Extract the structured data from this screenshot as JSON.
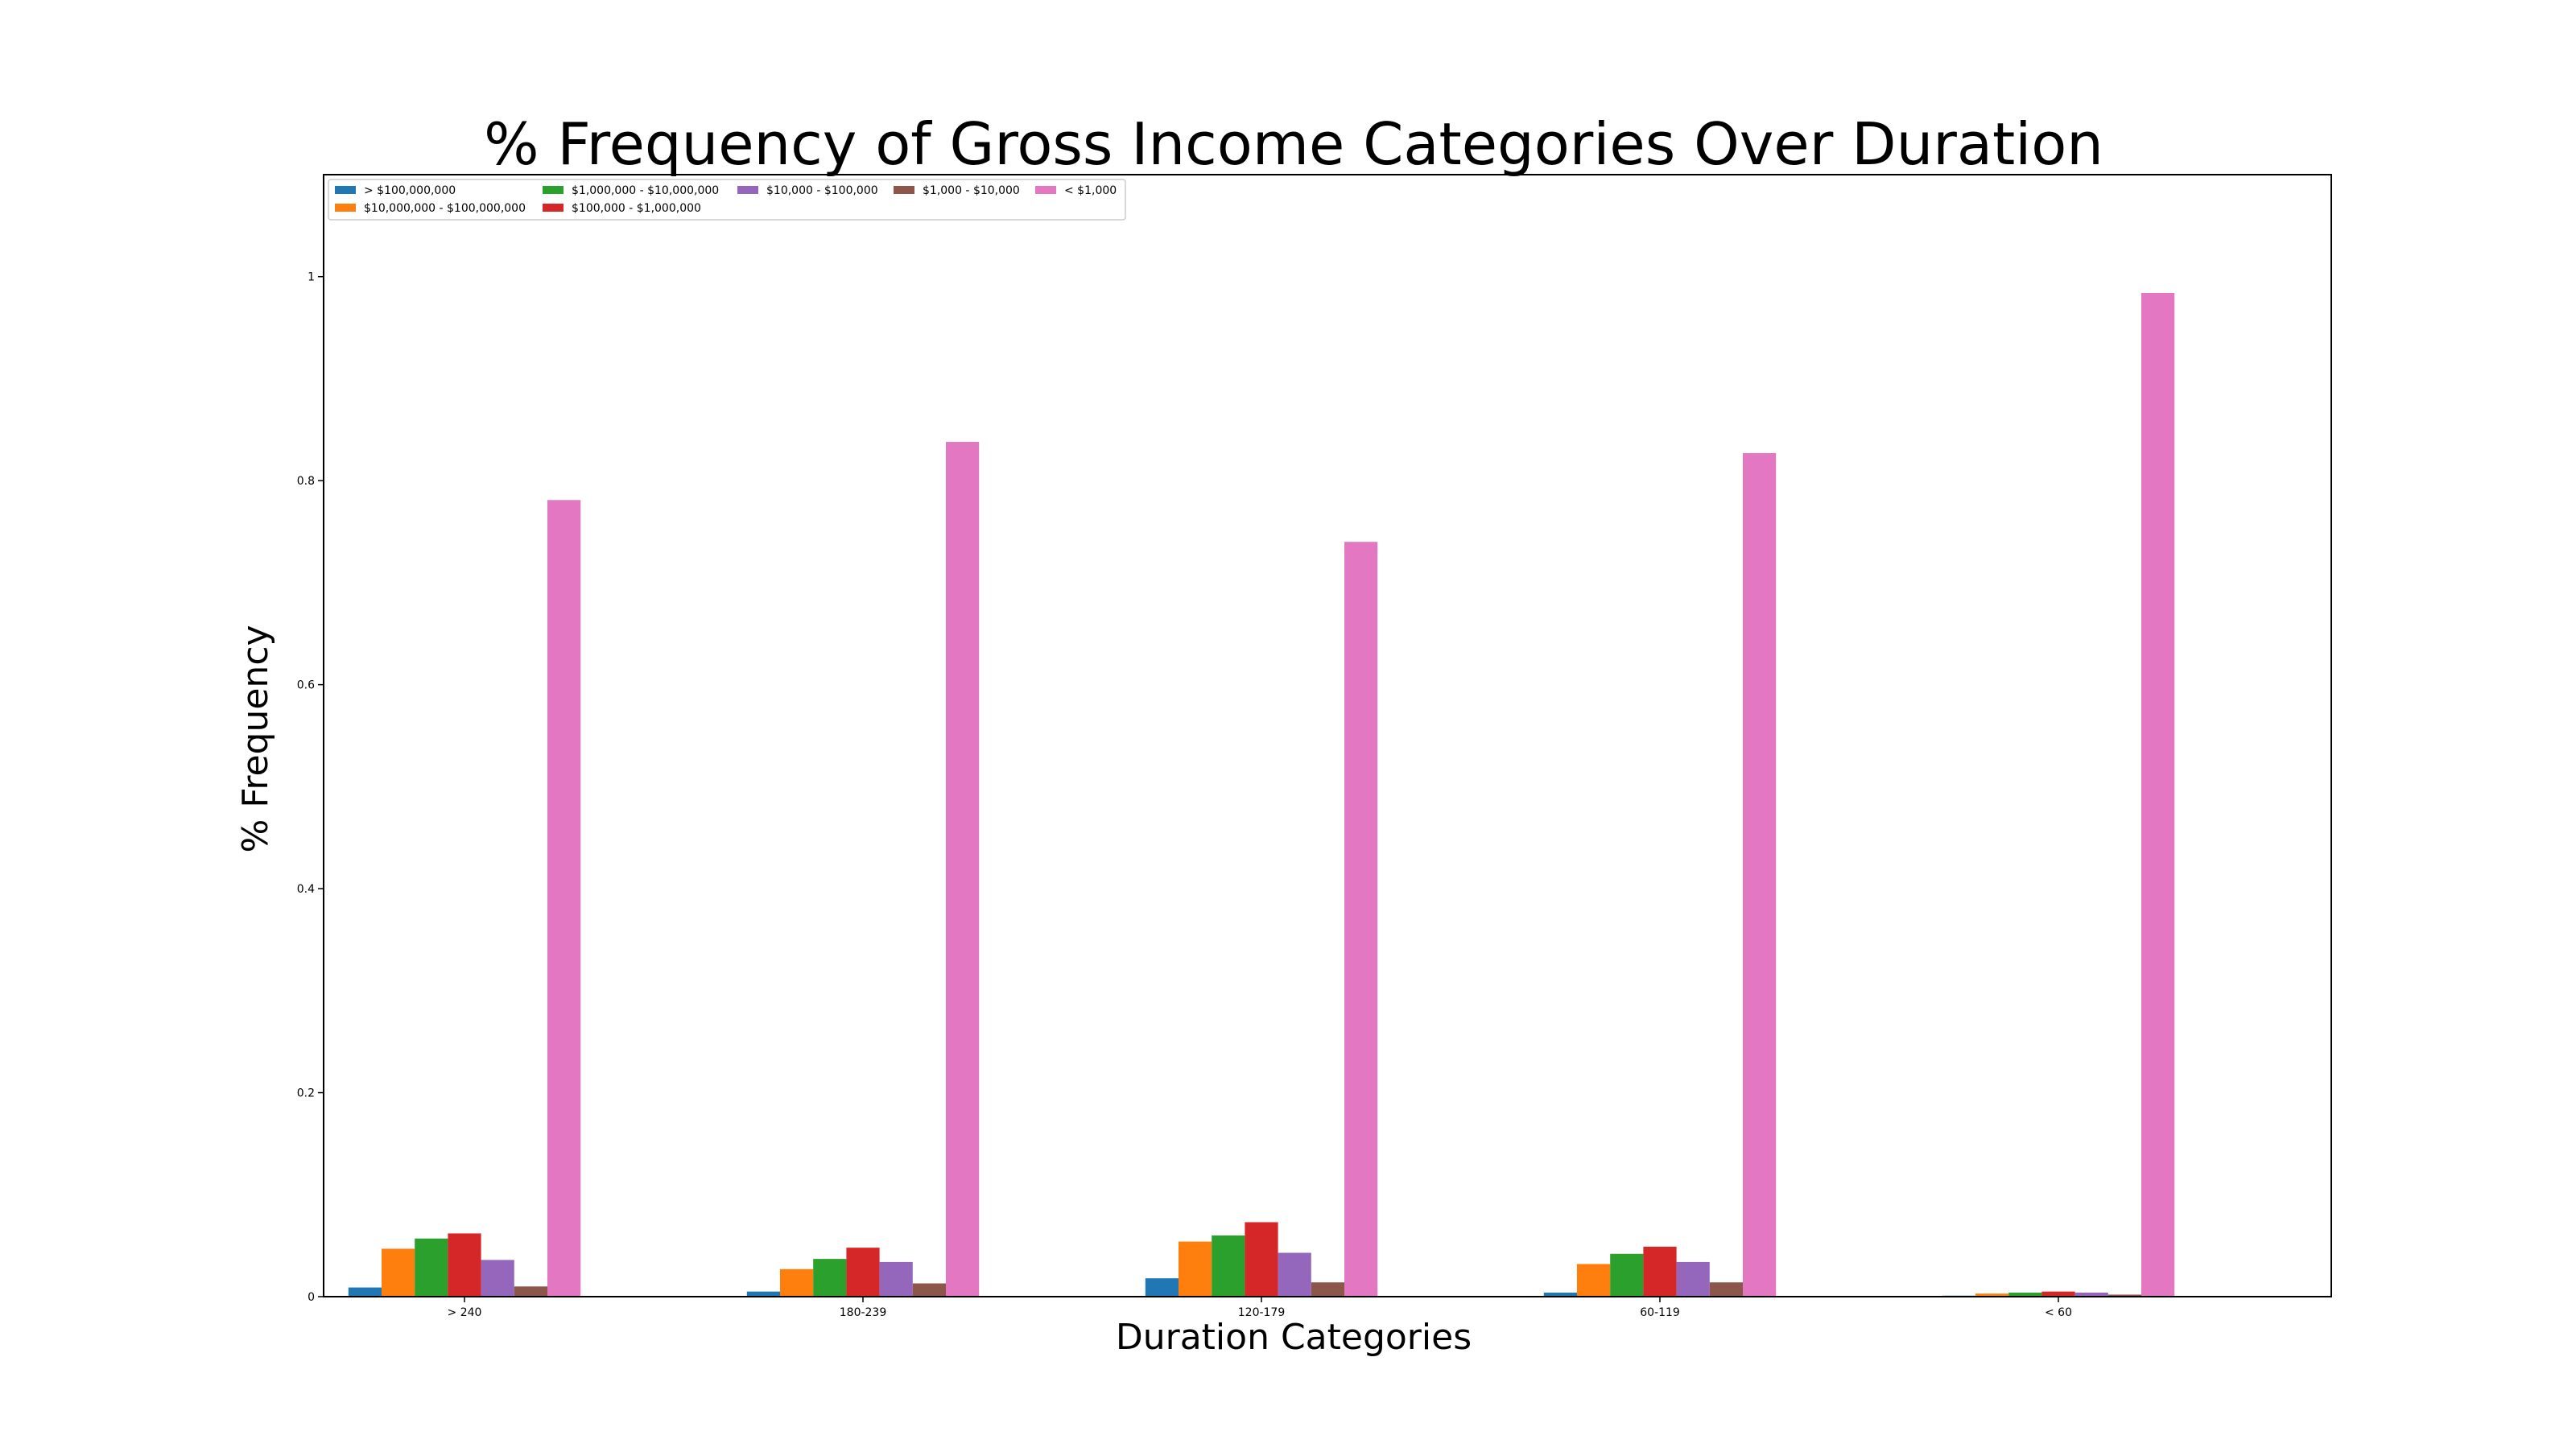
{
  "chart_data": {
    "type": "bar",
    "title": "% Frequency of Gross Income Categories Over Duration",
    "xlabel": "Duration Categories",
    "ylabel": "% Frequency",
    "categories": [
      "> 240",
      "180-239",
      "120-179",
      "60-119",
      "< 60"
    ],
    "ylim": [
      0,
      1.1
    ],
    "yticks": [
      0,
      0.2,
      0.4,
      0.6,
      0.8,
      1
    ],
    "ytick_labels": [
      "0",
      "0.2",
      "0.4",
      "0.6",
      "0.8",
      "1"
    ],
    "grid": false,
    "legend_position": "top-left",
    "series": [
      {
        "name": "> $100,000,000",
        "color": "#1f77b4",
        "values": [
          0.009,
          0.005,
          0.018,
          0.004,
          0.001
        ]
      },
      {
        "name": "$10,000,000 - $100,000,000",
        "color": "#ff7f0e",
        "values": [
          0.047,
          0.027,
          0.054,
          0.032,
          0.003
        ]
      },
      {
        "name": "$1,000,000 - $10,000,000",
        "color": "#2ca02c",
        "values": [
          0.057,
          0.037,
          0.06,
          0.042,
          0.004
        ]
      },
      {
        "name": "$100,000 - $1,000,000",
        "color": "#d62728",
        "values": [
          0.062,
          0.048,
          0.073,
          0.049,
          0.005
        ]
      },
      {
        "name": "$10,000 - $100,000",
        "color": "#9467bd",
        "values": [
          0.036,
          0.034,
          0.043,
          0.034,
          0.004
        ]
      },
      {
        "name": "$1,000 - $10,000",
        "color": "#8c564b",
        "values": [
          0.01,
          0.013,
          0.014,
          0.014,
          0.002
        ]
      },
      {
        "name": "< $1,000",
        "color": "#e377c2",
        "values": [
          0.781,
          0.838,
          0.74,
          0.827,
          0.984
        ]
      }
    ]
  }
}
